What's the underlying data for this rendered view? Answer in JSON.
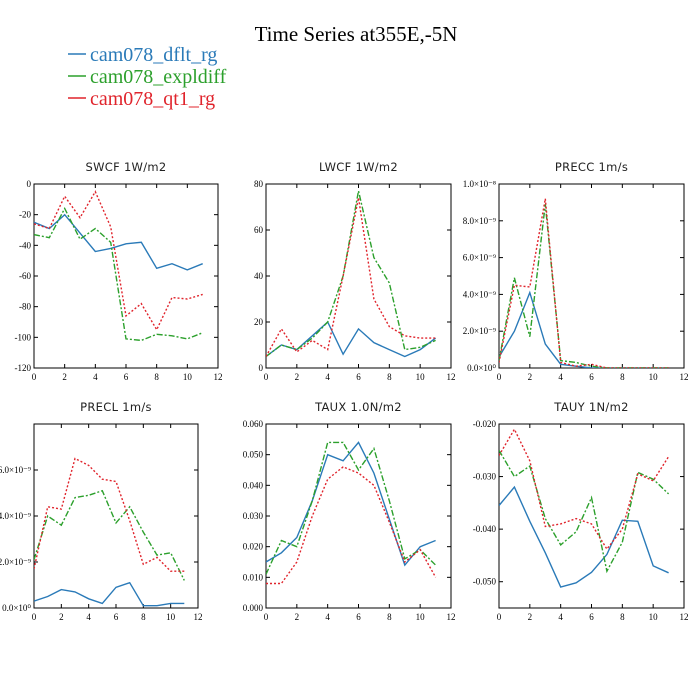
{
  "figure": {
    "title": "Time Series at355E,-5N",
    "legend": [
      {
        "label": "cam078_dflt_rg",
        "color": "#2a7ab8",
        "dash": "solid"
      },
      {
        "label": "cam078_expldiff",
        "color": "#2ca02c",
        "dash": "dashdot"
      },
      {
        "label": "cam078_qt1_rg",
        "color": "#e0242c",
        "dash": "dotted"
      }
    ]
  },
  "chart_data": [
    {
      "type": "line",
      "name": "swcf",
      "title": "SWCF   1W/m2",
      "x": [
        0,
        1,
        2,
        3,
        4,
        5,
        6,
        7,
        8,
        9,
        10,
        11
      ],
      "xlim": [
        0,
        12
      ],
      "ylim": [
        -120,
        0
      ],
      "xticks": [
        "0",
        "2",
        "4",
        "6",
        "8",
        "10",
        "12"
      ],
      "yticks": [
        "0",
        "-20",
        "-40",
        "-60",
        "-80",
        "-100",
        "-120"
      ],
      "series": [
        {
          "name": "cam078_dflt_rg",
          "values": [
            -25,
            -29,
            -20,
            -32,
            -44,
            -42,
            -39,
            -38,
            -55,
            -52,
            -56,
            -52
          ]
        },
        {
          "name": "cam078_expldiff",
          "values": [
            -33,
            -35,
            -16,
            -36,
            -29,
            -38,
            -101,
            -102,
            -98,
            -99,
            -101,
            -97
          ]
        },
        {
          "name": "cam078_qt1_rg",
          "values": [
            -26,
            -29,
            -8,
            -22,
            -5,
            -28,
            -86,
            -78,
            -95,
            -74,
            -75,
            -72
          ]
        }
      ]
    },
    {
      "type": "line",
      "name": "lwcf",
      "title": "LWCF   1W/m2",
      "x": [
        0,
        1,
        2,
        3,
        4,
        5,
        6,
        7,
        8,
        9,
        10,
        11
      ],
      "xlim": [
        0,
        12
      ],
      "ylim": [
        0,
        80
      ],
      "xticks": [
        "0",
        "2",
        "4",
        "6",
        "8",
        "10",
        "12"
      ],
      "yticks": [
        "0",
        "20",
        "40",
        "60",
        "80"
      ],
      "series": [
        {
          "name": "cam078_dflt_rg",
          "values": [
            5,
            10,
            8,
            14,
            20,
            6,
            17,
            11,
            8,
            5,
            8,
            13
          ]
        },
        {
          "name": "cam078_expldiff",
          "values": [
            5,
            10,
            8,
            13,
            20,
            40,
            77,
            48,
            37,
            8,
            9,
            12
          ]
        },
        {
          "name": "cam078_qt1_rg",
          "values": [
            5,
            17,
            7,
            12,
            8,
            40,
            74,
            30,
            18,
            14,
            13,
            13
          ]
        }
      ]
    },
    {
      "type": "line",
      "name": "precc",
      "title": "PRECC   1m/s",
      "x": [
        0,
        1,
        2,
        3,
        4,
        5,
        6,
        7,
        8,
        9,
        10,
        11
      ],
      "xlim": [
        0,
        12
      ],
      "ylim": [
        0,
        1e-08
      ],
      "xticks": [
        "0",
        "2",
        "4",
        "6",
        "8",
        "10",
        "12"
      ],
      "yticks": [
        "0.0×10⁰",
        "2.0×10⁻⁹",
        "4.0×10⁻⁹",
        "6.0×10⁻⁹",
        "8.0×10⁻⁹",
        "1.0×10⁻⁸"
      ],
      "series": [
        {
          "name": "cam078_dflt_rg",
          "values": [
            6e-10,
            2e-09,
            4.1e-09,
            1.3e-09,
            2e-10,
            1e-10,
            0,
            0,
            0,
            0,
            0,
            0
          ]
        },
        {
          "name": "cam078_expldiff",
          "values": [
            4e-10,
            4.9e-09,
            1.7e-09,
            8.9e-09,
            4e-10,
            3e-10,
            1e-10,
            0,
            0,
            0,
            0,
            0
          ]
        },
        {
          "name": "cam078_qt1_rg",
          "values": [
            3e-10,
            4.5e-09,
            4.4e-09,
            9.2e-09,
            3e-10,
            1e-10,
            2e-10,
            0,
            0,
            0,
            0,
            0
          ]
        }
      ]
    },
    {
      "type": "line",
      "name": "precl",
      "title": "PRECL   1m/s",
      "x": [
        0,
        1,
        2,
        3,
        4,
        5,
        6,
        7,
        8,
        9,
        10,
        11
      ],
      "xlim": [
        0,
        12
      ],
      "ylim": [
        0,
        8e-09
      ],
      "xticks": [
        "0",
        "2",
        "4",
        "6",
        "8",
        "10",
        "12"
      ],
      "yticks": [
        "0.0×10⁰",
        "2.0×10⁻⁹",
        "4.0×10⁻⁹",
        "6.0×10⁻⁹"
      ],
      "series": [
        {
          "name": "cam078_dflt_rg",
          "values": [
            3e-10,
            5e-10,
            8e-10,
            7e-10,
            4e-10,
            2e-10,
            9e-10,
            1.1e-09,
            1e-10,
            1e-10,
            2e-10,
            2e-10
          ]
        },
        {
          "name": "cam078_expldiff",
          "values": [
            2.1e-09,
            4e-09,
            3.6e-09,
            4.8e-09,
            4.9e-09,
            5.1e-09,
            3.7e-09,
            4.4e-09,
            3.3e-09,
            2.3e-09,
            2.4e-09,
            1.2e-09
          ]
        },
        {
          "name": "cam078_qt1_rg",
          "values": [
            1.7e-09,
            4.4e-09,
            4.3e-09,
            6.5e-09,
            6.2e-09,
            5.6e-09,
            5.5e-09,
            3.8e-09,
            1.9e-09,
            2.2e-09,
            1.6e-09,
            1.6e-09
          ]
        }
      ]
    },
    {
      "type": "line",
      "name": "taux",
      "title": "TAUX   1.0N/m2",
      "x": [
        0,
        1,
        2,
        3,
        4,
        5,
        6,
        7,
        8,
        9,
        10,
        11
      ],
      "xlim": [
        0,
        12
      ],
      "ylim": [
        0.0,
        0.06
      ],
      "xticks": [
        "0",
        "2",
        "4",
        "6",
        "8",
        "10",
        "12"
      ],
      "yticks": [
        "0.000",
        "0.010",
        "0.020",
        "0.030",
        "0.040",
        "0.050",
        "0.060"
      ],
      "series": [
        {
          "name": "cam078_dflt_rg",
          "values": [
            0.015,
            0.018,
            0.023,
            0.035,
            0.05,
            0.048,
            0.054,
            0.044,
            0.029,
            0.014,
            0.02,
            0.022
          ]
        },
        {
          "name": "cam078_expldiff",
          "values": [
            0.011,
            0.022,
            0.02,
            0.035,
            0.054,
            0.054,
            0.045,
            0.052,
            0.035,
            0.016,
            0.019,
            0.014
          ]
        },
        {
          "name": "cam078_qt1_rg",
          "values": [
            0.008,
            0.008,
            0.015,
            0.03,
            0.042,
            0.046,
            0.044,
            0.04,
            0.028,
            0.015,
            0.019,
            0.01
          ]
        }
      ]
    },
    {
      "type": "line",
      "name": "tauy",
      "title": "TAUY   1N/m2",
      "x": [
        0,
        1,
        2,
        3,
        4,
        5,
        6,
        7,
        8,
        9,
        10,
        11
      ],
      "xlim": [
        0,
        12
      ],
      "ylim": [
        -0.055,
        -0.02
      ],
      "xticks": [
        "0",
        "2",
        "4",
        "6",
        "8",
        "10",
        "12"
      ],
      "yticks": [
        "-0.020",
        "-0.030",
        "-0.040",
        "-0.050"
      ],
      "series": [
        {
          "name": "cam078_dflt_rg",
          "values": [
            -0.0355,
            -0.032,
            -0.0385,
            -0.0445,
            -0.051,
            -0.0502,
            -0.0482,
            -0.0448,
            -0.0383,
            -0.0385,
            -0.047,
            -0.0483
          ]
        },
        {
          "name": "cam078_expldiff",
          "values": [
            -0.025,
            -0.03,
            -0.028,
            -0.038,
            -0.043,
            -0.0405,
            -0.034,
            -0.048,
            -0.0425,
            -0.0292,
            -0.0305,
            -0.0333
          ]
        },
        {
          "name": "cam078_qt1_rg",
          "values": [
            -0.026,
            -0.021,
            -0.027,
            -0.0395,
            -0.039,
            -0.038,
            -0.039,
            -0.0438,
            -0.04,
            -0.0295,
            -0.0308,
            -0.0262
          ]
        }
      ]
    }
  ]
}
